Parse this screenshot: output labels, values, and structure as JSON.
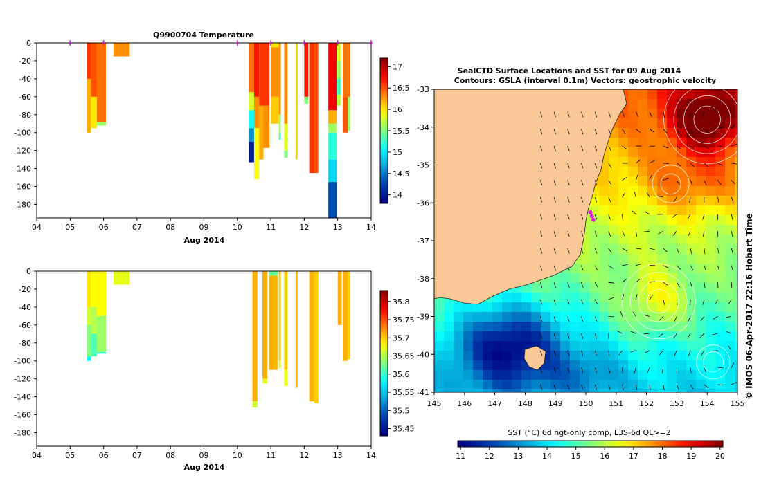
{
  "chart_data": [
    {
      "type": "heatmap",
      "title": "Q9900704  Temperature",
      "xlabel": "Aug 2014",
      "x_tick_labels": [
        "04",
        "05",
        "06",
        "07",
        "08",
        "09",
        "10",
        "11",
        "12",
        "13",
        "14"
      ],
      "x_ticks": [
        4,
        5,
        6,
        7,
        8,
        9,
        10,
        11,
        12,
        13,
        14
      ],
      "xlim": [
        4,
        14
      ],
      "ylim": [
        -195,
        0
      ],
      "y_ticks": [
        0,
        -20,
        -40,
        -60,
        -80,
        -100,
        -120,
        -140,
        -160,
        -180
      ],
      "colorbar": {
        "ticks": [
          14,
          14.5,
          15,
          15.5,
          16,
          16.5,
          17
        ],
        "tick_labels": [
          "14",
          "14.5",
          "15",
          "15.5",
          "16",
          "16.5",
          "17"
        ],
        "range": [
          13.8,
          17.2
        ]
      },
      "surface_markers": [
        5.0,
        6.0,
        10.0,
        11.0,
        12.0,
        13.0,
        14.0
      ],
      "profiles": [
        {
          "x0": 5.5,
          "x1": 5.62,
          "segments": [
            [
              0,
              -40,
              16.6
            ],
            [
              -40,
              -100,
              16.2
            ]
          ]
        },
        {
          "x0": 5.62,
          "x1": 5.8,
          "segments": [
            [
              0,
              -60,
              16.5
            ],
            [
              -60,
              -95,
              16.0
            ]
          ]
        },
        {
          "x0": 5.8,
          "x1": 6.07,
          "segments": [
            [
              0,
              -88,
              16.4
            ],
            [
              -88,
              -92,
              15.6
            ]
          ]
        },
        {
          "x0": 6.3,
          "x1": 6.78,
          "segments": [
            [
              0,
              -15,
              16.3
            ]
          ]
        },
        {
          "x0": 10.35,
          "x1": 10.5,
          "segments": [
            [
              0,
              -55,
              16.4
            ],
            [
              -55,
              -75,
              15.8
            ],
            [
              -75,
              -95,
              15.1
            ],
            [
              -95,
              -110,
              14.6
            ],
            [
              -110,
              -133,
              14.0
            ]
          ]
        },
        {
          "x0": 10.5,
          "x1": 10.65,
          "segments": [
            [
              0,
              -60,
              16.7
            ],
            [
              -60,
              -95,
              16.3
            ],
            [
              -95,
              -152,
              15.9
            ]
          ]
        },
        {
          "x0": 10.65,
          "x1": 10.78,
          "segments": [
            [
              0,
              -70,
              16.6
            ],
            [
              -70,
              -130,
              16.2
            ]
          ]
        },
        {
          "x0": 10.78,
          "x1": 10.96,
          "segments": [
            [
              0,
              -70,
              16.6
            ],
            [
              -70,
              -117,
              16.3
            ]
          ]
        },
        {
          "x0": 11.0,
          "x1": 11.24,
          "segments": [
            [
              0,
              -5,
              16.0
            ],
            [
              -5,
              -60,
              16.3
            ],
            [
              -60,
              -90,
              16.1
            ]
          ]
        },
        {
          "x0": 11.24,
          "x1": 11.3,
          "segments": [
            [
              0,
              -80,
              16.3
            ],
            [
              -80,
              -100,
              15.6
            ],
            [
              -100,
              -108,
              15.3
            ]
          ]
        },
        {
          "x0": 11.4,
          "x1": 11.5,
          "segments": [
            [
              0,
              -90,
              16.3
            ],
            [
              -90,
              -120,
              15.8
            ],
            [
              -120,
              -128,
              15.5
            ]
          ]
        },
        {
          "x0": 11.74,
          "x1": 11.8,
          "segments": [
            [
              0,
              -130,
              16.1
            ]
          ]
        },
        {
          "x0": 12.0,
          "x1": 12.12,
          "segments": [
            [
              0,
              -60,
              16.7
            ],
            [
              -60,
              -68,
              15.5
            ]
          ]
        },
        {
          "x0": 12.15,
          "x1": 12.3,
          "segments": [
            [
              0,
              -145,
              16.6
            ]
          ]
        },
        {
          "x0": 12.3,
          "x1": 12.42,
          "segments": [
            [
              0,
              -145,
              16.5
            ]
          ]
        },
        {
          "x0": 12.72,
          "x1": 12.97,
          "segments": [
            [
              0,
              -75,
              16.8
            ],
            [
              -75,
              -90,
              16.2
            ],
            [
              -90,
              -100,
              15.6
            ],
            [
              -100,
              -130,
              15.2
            ],
            [
              -130,
              -155,
              14.9
            ],
            [
              -155,
              -195,
              14.3
            ]
          ]
        },
        {
          "x0": 12.97,
          "x1": 13.1,
          "segments": [
            [
              0,
              -20,
              15.8
            ],
            [
              -20,
              -40,
              15.6
            ],
            [
              -40,
              -58,
              15.3
            ],
            [
              -58,
              -70,
              15.7
            ]
          ]
        },
        {
          "x0": 13.15,
          "x1": 13.3,
          "segments": [
            [
              0,
              -60,
              16.4
            ],
            [
              -60,
              -100,
              16.5
            ]
          ]
        },
        {
          "x0": 13.3,
          "x1": 13.38,
          "segments": [
            [
              0,
              -60,
              16.4
            ],
            [
              -60,
              -98,
              15.6
            ]
          ]
        },
        {
          "x0": 13.97,
          "x1": 14.05,
          "segments": []
        }
      ]
    },
    {
      "type": "heatmap",
      "title": "",
      "xlabel": "Aug 2014",
      "x_tick_labels": [
        "04",
        "05",
        "06",
        "07",
        "08",
        "09",
        "10",
        "11",
        "12",
        "13",
        "14"
      ],
      "x_ticks": [
        4,
        5,
        6,
        7,
        8,
        9,
        10,
        11,
        12,
        13,
        14
      ],
      "xlim": [
        4,
        14
      ],
      "ylim": [
        -195,
        0
      ],
      "y_ticks": [
        0,
        -20,
        -40,
        -60,
        -80,
        -100,
        -120,
        -140,
        -160,
        -180
      ],
      "colorbar": {
        "ticks": [
          35.45,
          35.5,
          35.55,
          35.6,
          35.65,
          35.7,
          35.75,
          35.8
        ],
        "tick_labels": [
          "35.45",
          "35.5",
          "35.55",
          "35.6",
          "35.65",
          "35.7",
          "35.75",
          "35.8"
        ],
        "range": [
          35.43,
          35.83
        ]
      },
      "profiles": [
        {
          "x0": 5.5,
          "x1": 5.62,
          "segments": [
            [
              0,
              -40,
              35.69
            ],
            [
              -40,
              -60,
              35.66
            ],
            [
              -60,
              -95,
              35.63
            ],
            [
              -95,
              -100,
              35.58
            ]
          ]
        },
        {
          "x0": 5.62,
          "x1": 5.8,
          "segments": [
            [
              0,
              -40,
              35.68
            ],
            [
              -40,
              -70,
              35.65
            ],
            [
              -70,
              -95,
              35.61
            ]
          ]
        },
        {
          "x0": 5.8,
          "x1": 6.07,
          "segments": [
            [
              0,
              -50,
              35.68
            ],
            [
              -50,
              -90,
              35.64
            ],
            [
              -90,
              -92,
              35.6
            ]
          ]
        },
        {
          "x0": 6.3,
          "x1": 6.78,
          "segments": [
            [
              0,
              -15,
              35.67
            ]
          ]
        },
        {
          "x0": 10.45,
          "x1": 10.6,
          "segments": [
            [
              0,
              -145,
              35.71
            ],
            [
              -145,
              -152,
              35.66
            ]
          ]
        },
        {
          "x0": 10.75,
          "x1": 10.9,
          "segments": [
            [
              0,
              -120,
              35.71
            ],
            [
              -120,
              -125,
              35.67
            ]
          ]
        },
        {
          "x0": 10.95,
          "x1": 11.2,
          "segments": [
            [
              0,
              -5,
              35.62
            ],
            [
              -5,
              -110,
              35.71
            ]
          ]
        },
        {
          "x0": 11.24,
          "x1": 11.3,
          "segments": [
            [
              0,
              -100,
              35.7
            ],
            [
              -100,
              -108,
              35.67
            ]
          ]
        },
        {
          "x0": 11.4,
          "x1": 11.5,
          "segments": [
            [
              0,
              -110,
              35.7
            ],
            [
              -110,
              -128,
              35.67
            ]
          ]
        },
        {
          "x0": 11.74,
          "x1": 11.8,
          "segments": [
            [
              0,
              -130,
              35.71
            ]
          ]
        },
        {
          "x0": 12.15,
          "x1": 12.3,
          "segments": [
            [
              0,
              -145,
              35.71
            ]
          ]
        },
        {
          "x0": 12.3,
          "x1": 12.42,
          "segments": [
            [
              0,
              -147,
              35.7
            ]
          ]
        },
        {
          "x0": 13.0,
          "x1": 13.12,
          "segments": [
            [
              0,
              -60,
              35.71
            ]
          ]
        },
        {
          "x0": 13.15,
          "x1": 13.3,
          "segments": [
            [
              0,
              -100,
              35.71
            ]
          ]
        },
        {
          "x0": 13.3,
          "x1": 13.38,
          "segments": [
            [
              0,
              -98,
              35.7
            ]
          ]
        }
      ]
    },
    {
      "type": "heatmap",
      "title": "SealCTD Surface Locations and SST for 09 Aug 2014",
      "subtitle": "Contours: GSLA (interval 0.1m) Vectors: geostrophic velocity",
      "xlim": [
        145,
        155
      ],
      "ylim": [
        -41,
        -33
      ],
      "x_tick_labels": [
        "145",
        "146",
        "147",
        "148",
        "149",
        "150",
        "151",
        "152",
        "153",
        "154",
        "155"
      ],
      "x_ticks": [
        145,
        146,
        147,
        148,
        149,
        150,
        151,
        152,
        153,
        154,
        155
      ],
      "y_tick_labels": [
        "-33",
        "-34",
        "-35",
        "-36",
        "-37",
        "-38",
        "-39",
        "-40",
        "-41"
      ],
      "y_ticks": [
        -33,
        -34,
        -35,
        -36,
        -37,
        -38,
        -39,
        -40,
        -41
      ],
      "colorbar_label": "SST (°C) 6d ngt-only comp, L3S-6d QL>=2",
      "colorbar": {
        "ticks": [
          11,
          12,
          13,
          14,
          15,
          16,
          17,
          18,
          19,
          20
        ],
        "tick_labels": [
          "11",
          "12",
          "13",
          "14",
          "15",
          "16",
          "17",
          "18",
          "19",
          "20"
        ],
        "range": [
          10.9,
          20.1
        ]
      },
      "seal_locations": [
        [
          150.15,
          -36.25
        ],
        [
          150.2,
          -36.35
        ],
        [
          150.25,
          -36.45
        ]
      ],
      "credit": "© IMOS 06-Apr-2017 22:16 Hobart Time"
    }
  ],
  "colors": {
    "land": "#f9c896",
    "marker": "#e020e0",
    "axis": "#000000"
  }
}
